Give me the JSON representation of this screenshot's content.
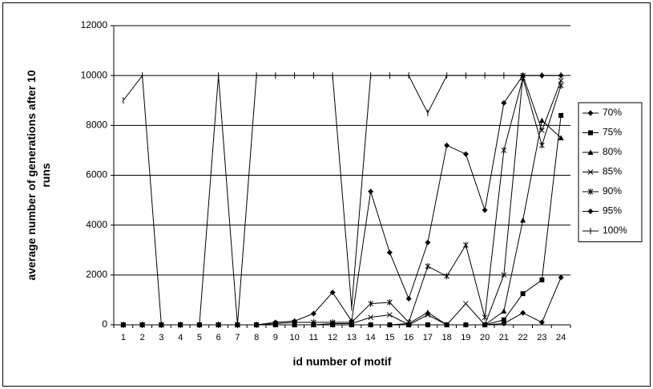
{
  "chart_data": {
    "type": "line",
    "x_label": "id number of motif",
    "y_label": "average number of generations after 10 runs",
    "categories": [
      "1",
      "2",
      "3",
      "4",
      "5",
      "6",
      "7",
      "8",
      "9",
      "10",
      "11",
      "12",
      "13",
      "14",
      "15",
      "16",
      "17",
      "18",
      "19",
      "20",
      "21",
      "22",
      "23",
      "24"
    ],
    "ylim": [
      0,
      12000
    ],
    "yticks": [
      0,
      2000,
      4000,
      6000,
      8000,
      10000,
      12000
    ],
    "grid": true,
    "legend": "right",
    "series": [
      {
        "name": "70%",
        "color": "#000000",
        "marker": "diamond",
        "values": [
          0,
          0,
          0,
          0,
          0,
          0,
          0,
          0,
          0,
          0,
          0,
          0,
          0,
          0,
          0,
          0,
          0,
          0,
          0,
          0,
          50,
          480,
          100,
          1900
        ]
      },
      {
        "name": "75%",
        "color": "#000000",
        "marker": "square",
        "values": [
          0,
          0,
          0,
          0,
          0,
          0,
          0,
          0,
          0,
          0,
          0,
          0,
          0,
          0,
          0,
          0,
          0,
          0,
          0,
          0,
          200,
          1250,
          1800,
          8400
        ]
      },
      {
        "name": "80%",
        "color": "#000000",
        "marker": "triangle",
        "values": [
          0,
          0,
          0,
          0,
          0,
          0,
          0,
          0,
          0,
          0,
          0,
          0,
          0,
          0,
          0,
          50,
          500,
          0,
          0,
          0,
          550,
          4200,
          8200,
          7500
        ]
      },
      {
        "name": "85%",
        "color": "#000000",
        "marker": "x",
        "values": [
          0,
          0,
          0,
          0,
          0,
          0,
          0,
          0,
          0,
          0,
          0,
          50,
          50,
          300,
          400,
          0,
          400,
          0,
          850,
          0,
          2000,
          10000,
          7800,
          9800
        ]
      },
      {
        "name": "90%",
        "color": "#000000",
        "marker": "star",
        "values": [
          0,
          0,
          0,
          0,
          0,
          0,
          0,
          0,
          50,
          100,
          100,
          100,
          100,
          850,
          900,
          100,
          2350,
          1950,
          3200,
          300,
          7000,
          9900,
          7200,
          9600
        ]
      },
      {
        "name": "95%",
        "color": "#000000",
        "marker": "diamond",
        "values": [
          0,
          0,
          0,
          0,
          0,
          0,
          0,
          0,
          100,
          150,
          450,
          1300,
          150,
          5350,
          2900,
          1050,
          3300,
          7200,
          6850,
          4600,
          8900,
          10000,
          10000,
          10000
        ]
      },
      {
        "name": "100%",
        "color": "#000000",
        "marker": "plus",
        "values": [
          9000,
          10000,
          0,
          0,
          0,
          10000,
          0,
          10000,
          10000,
          10000,
          10000,
          10000,
          700,
          10000,
          10000,
          10000,
          8500,
          10000,
          10000,
          10000,
          10000,
          10000,
          10000,
          10000
        ]
      }
    ]
  }
}
